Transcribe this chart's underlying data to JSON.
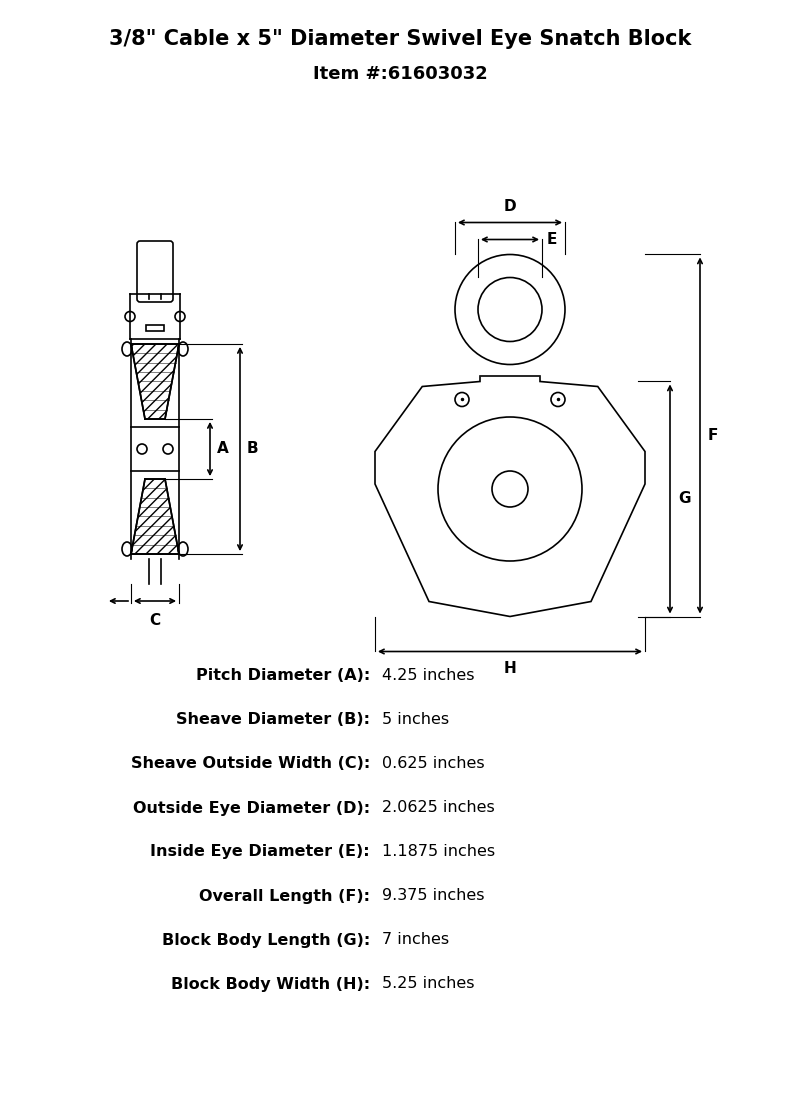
{
  "title_line1": "3/8\" Cable x 5\" Diameter Swivel Eye Snatch Block",
  "title_line2": "Item #:61603032",
  "bg_color": "#ffffff",
  "line_color": "#000000",
  "specs": [
    {
      "label": "Pitch Diameter (A):",
      "value": "4.25 inches"
    },
    {
      "label": "Sheave Diameter (B):",
      "value": "5 inches"
    },
    {
      "label": "Sheave Outside Width (C):",
      "value": "0.625 inches"
    },
    {
      "label": "Outside Eye Diameter (D):",
      "value": "2.0625 inches"
    },
    {
      "label": "Inside Eye Diameter (E):",
      "value": "1.1875 inches"
    },
    {
      "label": "Overall Length (F):",
      "value": "9.375 inches"
    },
    {
      "label": "Block Body Length (G):",
      "value": "7 inches"
    },
    {
      "label": "Block Body Width (H):",
      "value": "5.25 inches"
    }
  ]
}
